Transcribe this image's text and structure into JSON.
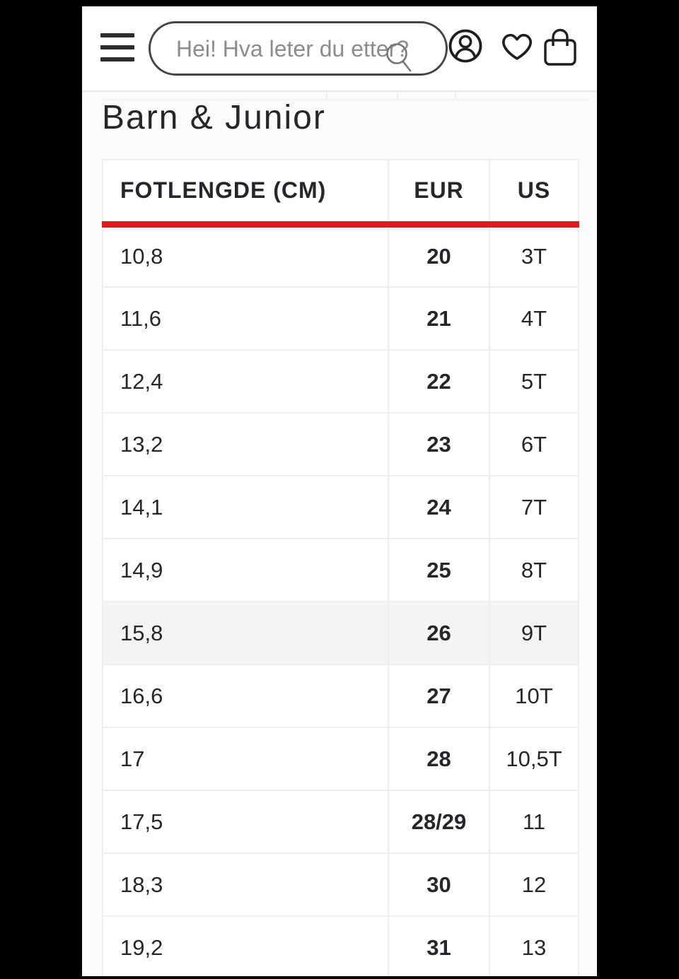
{
  "header": {
    "menu_icon": "hamburger-menu",
    "search": {
      "placeholder": "Hei! Hva leter du etter?",
      "icon": "magnifier"
    },
    "action_icons": {
      "account": "person-circle",
      "wishlist": "heart-outline",
      "cart": "shopping-bag"
    }
  },
  "page": {
    "title": "Barn & Junior"
  },
  "table": {
    "columns": [
      "FOTLENGDE (CM)",
      "EUR",
      "US"
    ],
    "rows": [
      [
        "10,8",
        "20",
        "3T"
      ],
      [
        "11,6",
        "21",
        "4T"
      ],
      [
        "12,4",
        "22",
        "5T"
      ],
      [
        "13,2",
        "23",
        "6T"
      ],
      [
        "14,1",
        "24",
        "7T"
      ],
      [
        "14,9",
        "25",
        "8T"
      ],
      [
        "15,8",
        "26",
        "9T"
      ],
      [
        "16,6",
        "27",
        "10T"
      ],
      [
        "17",
        "28",
        "10,5T"
      ],
      [
        "17,5",
        "28/29",
        "11"
      ],
      [
        "18,3",
        "30",
        "12"
      ],
      [
        "19,2",
        "31",
        "13"
      ]
    ],
    "highlighted_row_index": 6
  },
  "colors": {
    "accent_red": "#dd1d1d",
    "frame_black": "#000000",
    "text_dark": "#26262b"
  }
}
